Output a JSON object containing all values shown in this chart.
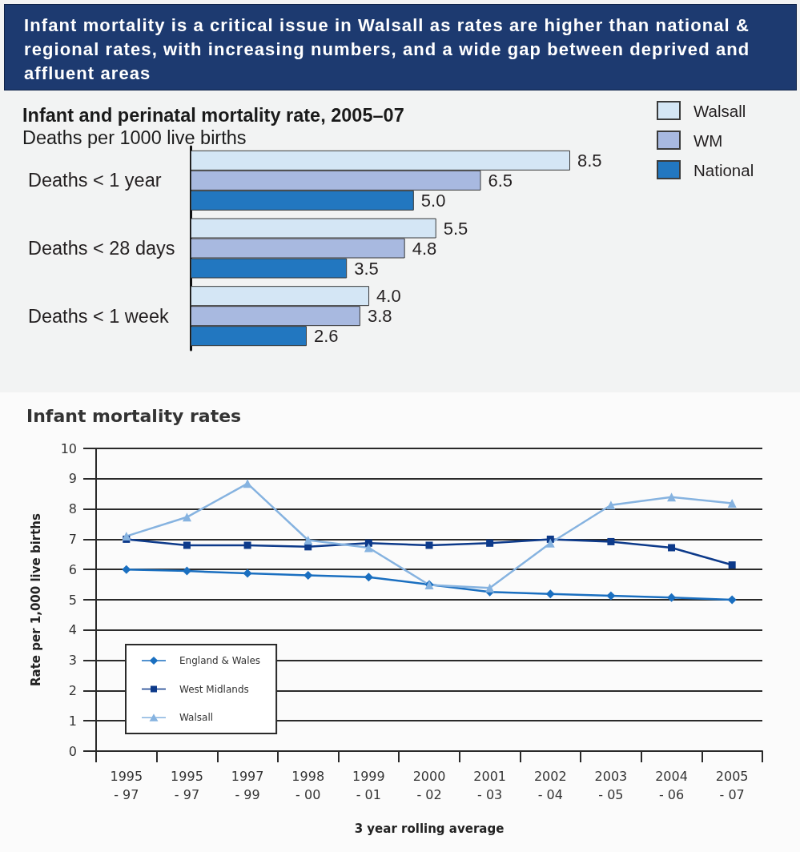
{
  "chart_data": [
    {
      "type": "other",
      "title": "Infant mortality is a critical issue in Walsall as rates are higher than national & regional rates, with increasing numbers, and a wide gap between deprived and affluent areas"
    },
    {
      "type": "bar",
      "orientation": "horizontal",
      "title": "Infant and perinatal mortality rate, 2005–07",
      "subtitle": "Deaths per 1000 live births",
      "categories": [
        "Deaths < 1 year",
        "Deaths < 28 days",
        "Deaths < 1 week"
      ],
      "series": [
        {
          "name": "Walsall",
          "color": "#d4e6f5",
          "values": [
            8.5,
            5.5,
            4.0
          ],
          "value_labels": [
            "8.5",
            "5.5",
            "4.0"
          ]
        },
        {
          "name": "WM",
          "color": "#a8b9e0",
          "values": [
            6.5,
            4.8,
            3.8
          ],
          "value_labels": [
            "6.5",
            "4.8",
            "3.8"
          ]
        },
        {
          "name": "National",
          "color": "#2277c0",
          "values": [
            5.0,
            3.5,
            2.6
          ],
          "value_labels": [
            "5.0",
            "3.5",
            "2.6"
          ]
        }
      ],
      "legend": "top right",
      "tick_labels": "y"
    },
    {
      "type": "line",
      "title": "Infant mortality rates",
      "xlabel": "3 year rolling average",
      "ylabel": "Rate per 1,000 live births",
      "categories": [
        "1995\n- 97",
        "1995\n- 97",
        "1997\n- 99",
        "1998\n- 00",
        "1999\n- 01",
        "2000\n- 02",
        "2001\n- 03",
        "2002\n- 04",
        "2003\n- 05",
        "2004\n- 06",
        "2005\n- 07"
      ],
      "series": [
        {
          "name": "England & Wales",
          "color": "#1a6fc0",
          "marker": "diamond",
          "values": [
            6.0,
            5.95,
            5.87,
            5.81,
            5.75,
            5.5,
            5.26,
            5.19,
            5.13,
            5.07,
            5.0
          ]
        },
        {
          "name": "West Midlands",
          "color": "#0d3a8a",
          "marker": "square",
          "values": [
            7.0,
            6.8,
            6.8,
            6.75,
            6.87,
            6.8,
            6.87,
            7.0,
            6.92,
            6.72,
            6.15
          ]
        },
        {
          "name": "Walsall",
          "color": "#86b3e0",
          "marker": "triangle",
          "values": [
            7.1,
            7.73,
            8.84,
            6.97,
            6.72,
            5.49,
            5.39,
            6.87,
            8.13,
            8.39,
            8.19
          ]
        }
      ],
      "ylim": [
        0,
        10
      ],
      "yticks": [
        0,
        1,
        2,
        3,
        4,
        5,
        6,
        7,
        8,
        9,
        10
      ],
      "grid": "y",
      "legend": "bottom left"
    }
  ]
}
